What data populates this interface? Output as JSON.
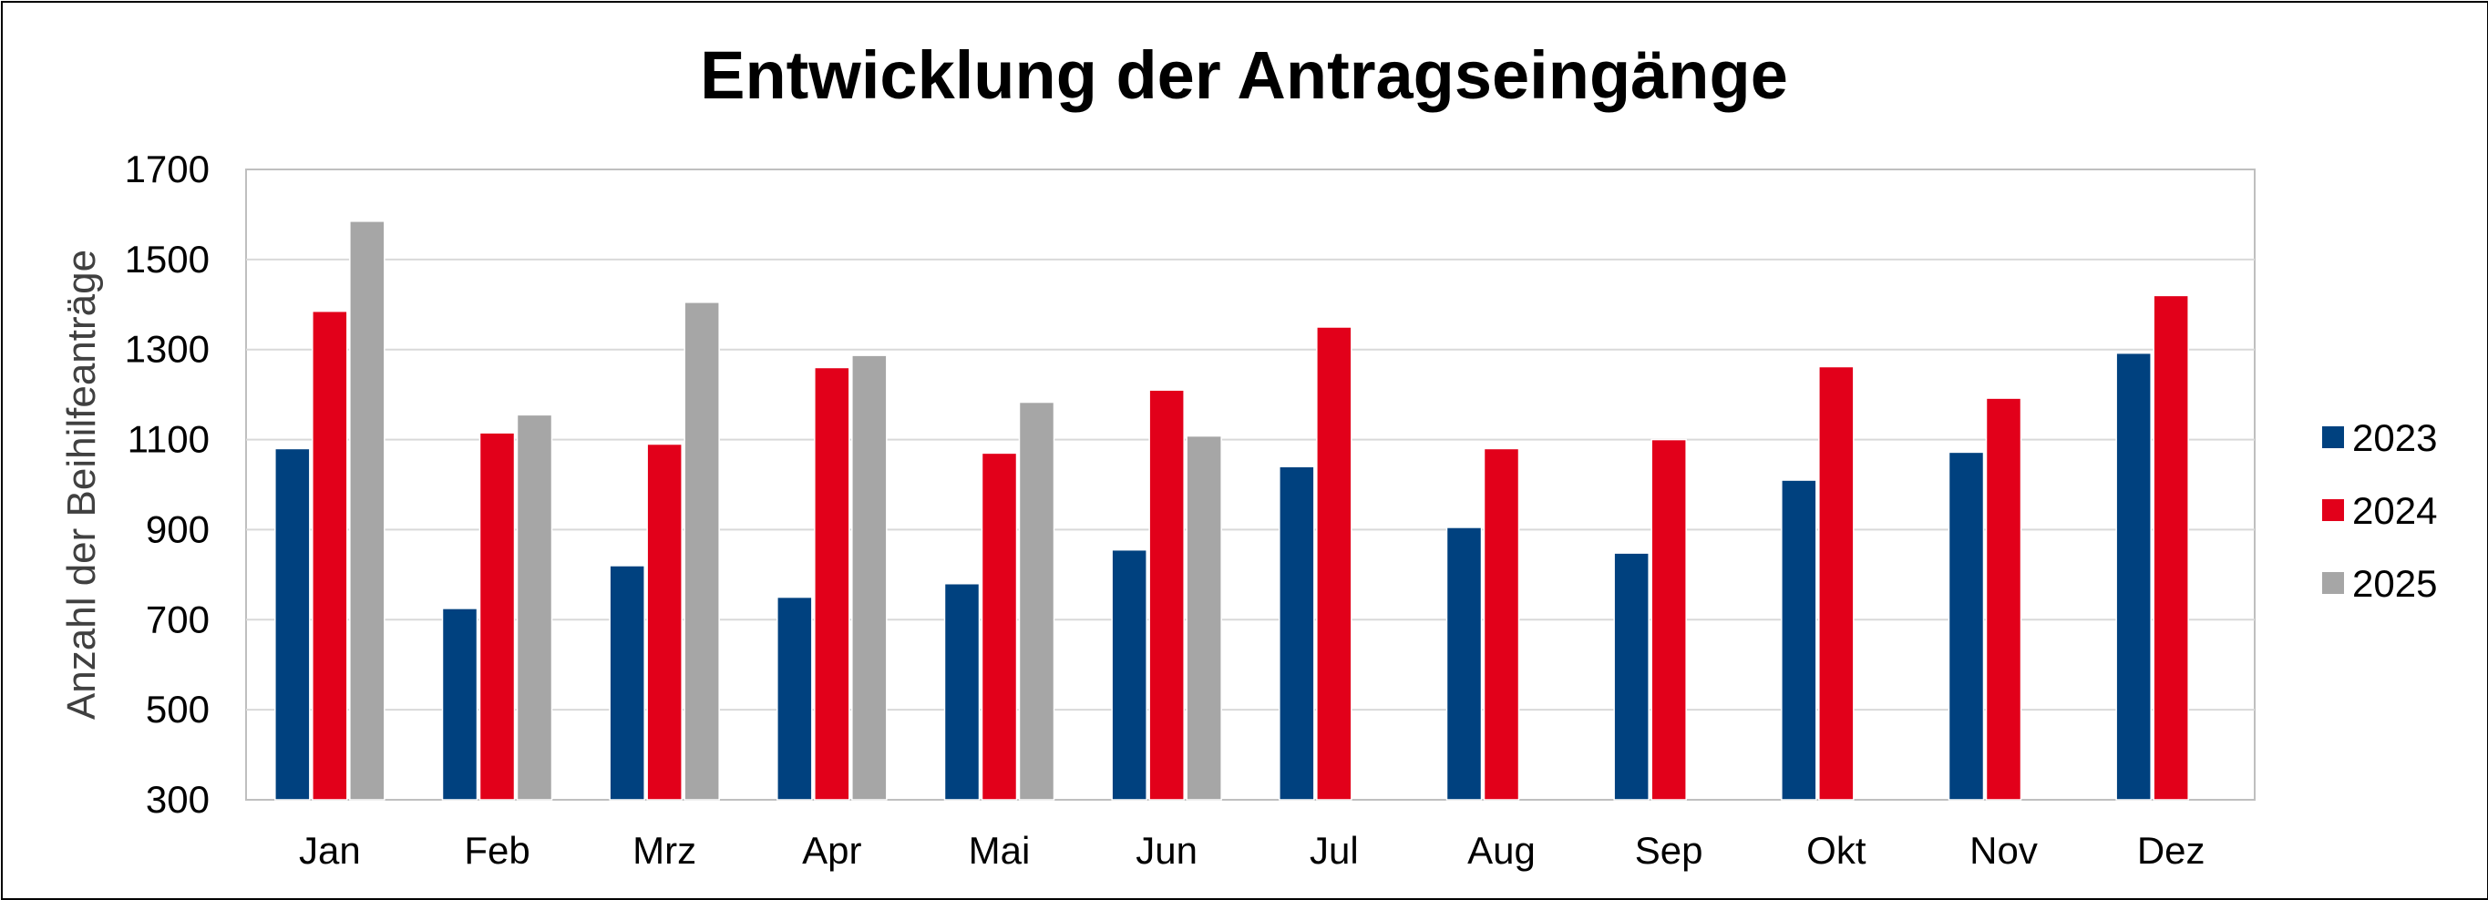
{
  "chart_data": {
    "type": "bar",
    "title": "Entwicklung der Antragseingänge",
    "xlabel": "",
    "ylabel": "Anzahl der Beihilfeanträge",
    "ylim": [
      300,
      1700
    ],
    "yticks": [
      "300",
      "500",
      "700",
      "900",
      "1100",
      "1300",
      "1500",
      "1700"
    ],
    "grid": true,
    "legend_position": "right",
    "categories": [
      "Jan",
      "Feb",
      "Mrz",
      "Apr",
      "Mai",
      "Jun",
      "Jul",
      "Aug",
      "Sep",
      "Okt",
      "Nov",
      "Dez"
    ],
    "series": [
      {
        "name": "2023",
        "color": "#00417F",
        "values": [
          1080,
          725,
          820,
          750,
          780,
          855,
          1040,
          905,
          848,
          1010,
          1072,
          1292
        ]
      },
      {
        "name": "2024",
        "color": "#E2001A",
        "values": [
          1385,
          1115,
          1090,
          1260,
          1070,
          1210,
          1350,
          1080,
          1100,
          1262,
          1192,
          1420
        ]
      },
      {
        "name": "2025",
        "color": "#A6A6A6",
        "values": [
          1585,
          1155,
          1405,
          1287,
          1183,
          1108,
          null,
          null,
          null,
          null,
          null,
          null
        ]
      }
    ]
  }
}
